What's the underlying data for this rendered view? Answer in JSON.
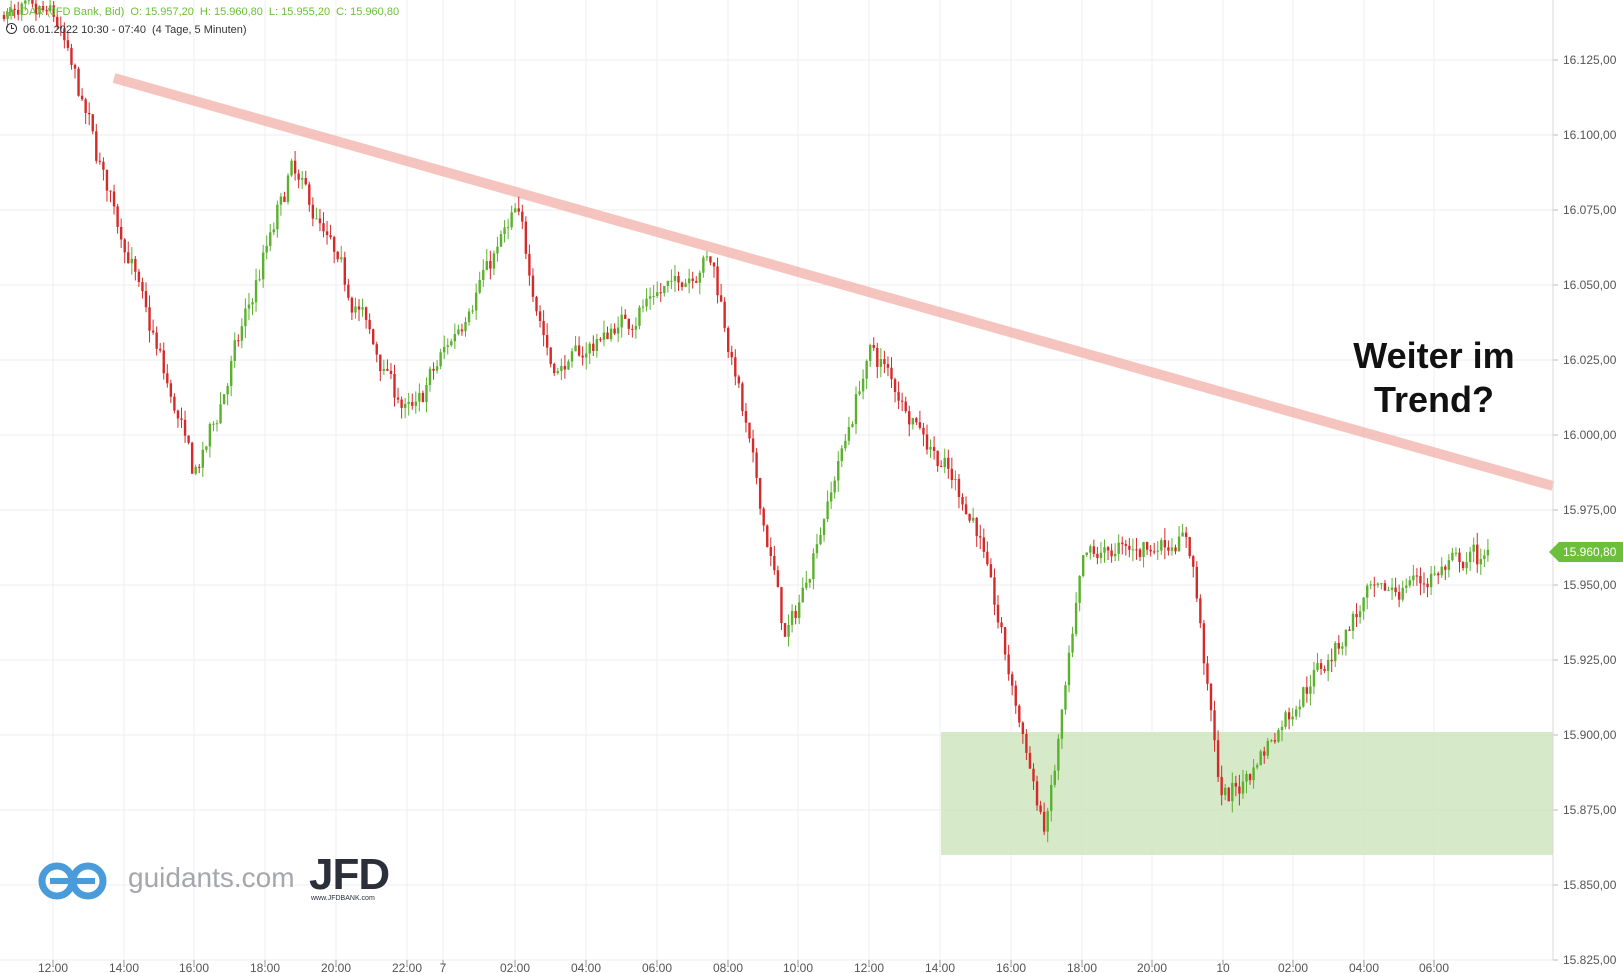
{
  "header": {
    "line1_instrument": "DAX (JFD Bank, Bid)",
    "line1_open": "O: 15.957,20",
    "line1_high": "H: 15.960,80",
    "line1_low": "L: 15.955,20",
    "line1_close": "C: 15.960,80",
    "line2_range": "06.01.2022 10:30 - 07:40",
    "line2_period": "(4 Tage, 5 Minuten)"
  },
  "annotation": {
    "line1": "Weiter im",
    "line2": "Trend?"
  },
  "branding": {
    "logo_text": "guidants.com",
    "jfd_big": "JFD",
    "jfd_small": "www.JFDBANK.com"
  },
  "last_price_label": "15.960,80",
  "colors": {
    "up": "#5bb02e",
    "down": "#d42a2a",
    "trendline": "#f4b6ae",
    "support_zone": "#cfe5c0",
    "accent": "#6bbf3a"
  },
  "chart_data": {
    "type": "candlestick",
    "title": "DAX (JFD Bank, Bid)",
    "interval": "5 Minuten",
    "y_axis": {
      "ticks": [
        16125,
        16100,
        16075,
        16050,
        16025,
        16000,
        15975,
        15950,
        15925,
        15900,
        15875,
        15850,
        15825
      ],
      "tick_labels": [
        "16.125,00",
        "16.100,00",
        "16.075,00",
        "16.050,00",
        "16.025,00",
        "16.000,00",
        "15.975,00",
        "15.950,00",
        "15.925,00",
        "15.900,00",
        "15.875,00",
        "15.850,00",
        "15.825,00"
      ],
      "range": [
        15820,
        16142
      ]
    },
    "x_axis": {
      "tick_labels": [
        "12:00",
        "14:00",
        "16:00",
        "18:00",
        "20:00",
        "22:00",
        "7",
        "02:00",
        "04:00",
        "06:00",
        "08:00",
        "10:00",
        "12:00",
        "14:00",
        "16:00",
        "18:00",
        "20:00",
        "10",
        "02:00",
        "04:00",
        "06:00"
      ]
    },
    "key_points": [
      {
        "label": "06.01 12:00",
        "price": 16140
      },
      {
        "label": "06.01 16:00",
        "price": 15985
      },
      {
        "label": "06.01 19:00",
        "price": 16090
      },
      {
        "label": "06.01 22:00",
        "price": 16005
      },
      {
        "label": "07.01 02:00",
        "price": 16075
      },
      {
        "label": "07.01 03:00",
        "price": 16020
      },
      {
        "label": "07.01 07:30",
        "price": 16060
      },
      {
        "label": "07.01 09:40",
        "price": 15930
      },
      {
        "label": "07.01 12:00",
        "price": 16030
      },
      {
        "label": "07.01 15:00",
        "price": 15970
      },
      {
        "label": "07.01 16:50",
        "price": 15865
      },
      {
        "label": "07.01 18:00",
        "price": 15960
      },
      {
        "label": "07.01 21:00",
        "price": 15965
      },
      {
        "label": "10.01 00:30",
        "price": 15875
      },
      {
        "label": "10.01 04:00",
        "price": 15945
      },
      {
        "label": "10.01 07:40",
        "price": 15960.8
      }
    ],
    "last_bar": {
      "open": 15957.2,
      "high": 15960.8,
      "low": 15955.2,
      "close": 15960.8
    },
    "trendline": {
      "from": {
        "time": "06.01 14:00",
        "price": 16119
      },
      "to": {
        "time": "10.01 07:40",
        "price": 15983
      }
    },
    "support_zone": {
      "from_time": "07.01 14:00",
      "price_low": 15860,
      "price_high": 15901
    }
  }
}
